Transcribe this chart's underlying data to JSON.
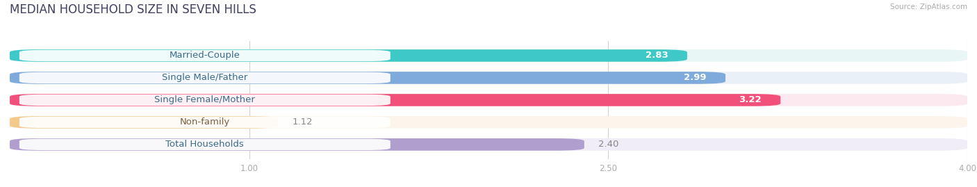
{
  "title": "MEDIAN HOUSEHOLD SIZE IN SEVEN HILLS",
  "source": "Source: ZipAtlas.com",
  "categories": [
    "Married-Couple",
    "Single Male/Father",
    "Single Female/Mother",
    "Non-family",
    "Total Households"
  ],
  "values": [
    2.83,
    2.99,
    3.22,
    1.12,
    2.4
  ],
  "bar_colors": [
    "#3ec8c8",
    "#7eaadc",
    "#f0507a",
    "#f5c98a",
    "#b09ece"
  ],
  "bar_bg_colors": [
    "#e8f6f6",
    "#eaf0f8",
    "#fce8ef",
    "#fdf5ec",
    "#f0ecf8"
  ],
  "label_text_colors": [
    "#3a6b8a",
    "#3a6b8a",
    "#3a6b8a",
    "#7a6040",
    "#3a6b8a"
  ],
  "value_labels": [
    "2.83",
    "2.99",
    "3.22",
    "1.12",
    "2.40"
  ],
  "value_inside": [
    true,
    true,
    true,
    false,
    false
  ],
  "xmin": 0.0,
  "xmax": 4.0,
  "xticks": [
    1.0,
    2.5,
    4.0
  ],
  "xtick_labels": [
    "1.00",
    "2.50",
    "4.00"
  ],
  "title_fontsize": 12,
  "label_fontsize": 9.5,
  "value_fontsize": 9.5,
  "bg_color": "#ffffff",
  "bar_height": 0.55,
  "n_bars": 5
}
